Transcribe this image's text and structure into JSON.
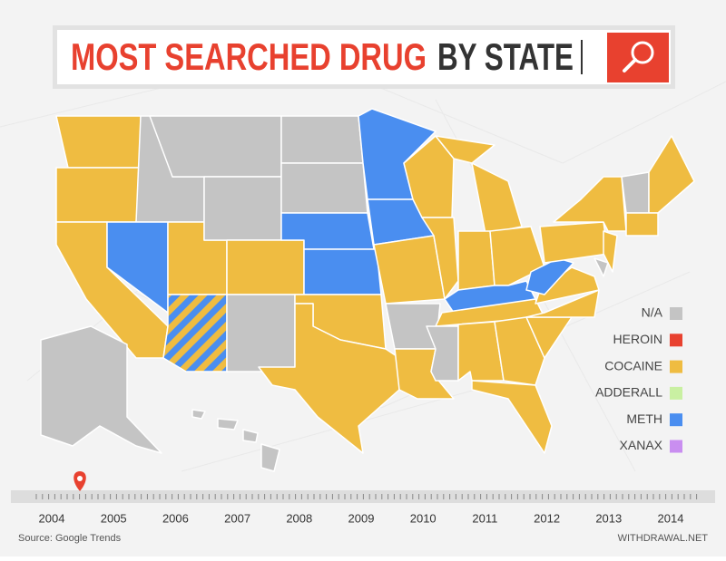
{
  "header": {
    "title_highlight": "MOST SEARCHED DRUG",
    "title_rest": "BY STATE"
  },
  "legend": [
    {
      "label": "N/A",
      "color": "#c4c4c4"
    },
    {
      "label": "HEROIN",
      "color": "#e8412f"
    },
    {
      "label": "COCAINE",
      "color": "#efbc41"
    },
    {
      "label": "ADDERALL",
      "color": "#c9f0a2"
    },
    {
      "label": "METH",
      "color": "#4a8ef0"
    },
    {
      "label": "XANAX",
      "color": "#c98ef0"
    }
  ],
  "timeline": {
    "years": [
      "2004",
      "2005",
      "2006",
      "2007",
      "2008",
      "2009",
      "2010",
      "2011",
      "2012",
      "2013",
      "2014"
    ]
  },
  "footer": {
    "source": "Source: Google Trends",
    "site": "WITHDRAWAL.NET"
  }
}
